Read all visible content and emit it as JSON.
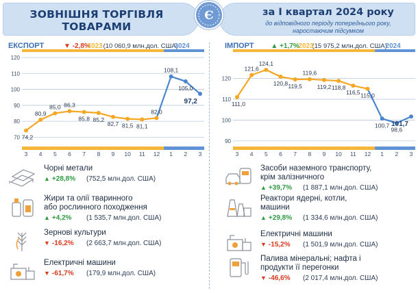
{
  "header": {
    "title_line1": "ЗОВНІШНЯ ТОРГІВЛЯ",
    "title_line2": "ТОВАРАМИ",
    "period": "за І квартал 2024 року",
    "sub_line1": "до відповідного періоду попереднього року,",
    "sub_line2": "наростаючим підсумком",
    "logo_letter": "Є"
  },
  "colors": {
    "line": "#f5a623",
    "line_2024": "#4a86cf",
    "bar_2023": "#f5b63a",
    "bar_2024": "#5f93d6",
    "grid": "#b9c8dc",
    "decrease": "#d9391d",
    "increase": "#2e9a3f"
  },
  "export": {
    "name": "ЕКСПОРТ",
    "change": "-2,8%",
    "total": "(10 060,9 млн.дол. США)",
    "items": [
      {
        "icon": "steel-beams-icon",
        "name": [
          "Чорні метали"
        ],
        "change": "+28,8%",
        "direction": "up",
        "value": "(752,5 млн.дол. США)"
      },
      {
        "icon": "oil-bottle-icon",
        "name": [
          "Жири та олії тваринного",
          "або рослинного походження"
        ],
        "change": "+4,2%",
        "direction": "up",
        "value": "(1 535,7 млн.дол. США)"
      },
      {
        "icon": "wheat-icon",
        "name": [
          "Зернові культури"
        ],
        "change": "-16,2%",
        "direction": "down",
        "value": "(2 663,7 млн.дол. США)"
      },
      {
        "icon": "electric-machine-icon",
        "name": [
          "Електричні машини"
        ],
        "change": "-61,7%",
        "direction": "down",
        "value": "(179,9 млн.дол. США)"
      }
    ]
  },
  "import": {
    "name": "ІМПОРТ",
    "change": "+1,7%",
    "total": "(15 975,2 млн.дол. США)",
    "items": [
      {
        "icon": "vehicles-icon",
        "name": [
          "Засоби наземного транспорту,",
          "крім залізничного"
        ],
        "change": "+39,7%",
        "direction": "up",
        "value": "(1 887,1 млн.дол. США)"
      },
      {
        "icon": "reactor-icon",
        "name": [
          "Реактори ядерні, котли,",
          "машини"
        ],
        "change": "+29,8%",
        "direction": "up",
        "value": "(1 334,6 млн.дол. США)"
      },
      {
        "icon": "electric-machine-icon",
        "name": [
          "Електричні машини"
        ],
        "change": "-15,2%",
        "direction": "down",
        "value": "(1 501,9 млн.дол. США)"
      },
      {
        "icon": "fuel-pump-icon",
        "name": [
          "Палива мінеральні; нафта і",
          "продукти її перегонки"
        ],
        "change": "-46,6%",
        "direction": "down",
        "value": "(2 017,4 млн.дол. США)"
      }
    ]
  },
  "chart_data": [
    {
      "type": "line",
      "title": "ЕКСПОРТ",
      "x": [
        "3",
        "4",
        "5",
        "6",
        "7",
        "8",
        "9",
        "10",
        "11",
        "12",
        "1",
        "2",
        "3"
      ],
      "years": [
        {
          "label": "2023",
          "months": 10
        },
        {
          "label": "2024",
          "months": 3
        }
      ],
      "series": [
        {
          "values": [
            74.2,
            80.9,
            85.0,
            86.3,
            85.8,
            85.2,
            82.7,
            81.5,
            81.1,
            82.0,
            108.1,
            105.0,
            97.2
          ]
        }
      ],
      "point_labels": [
        "74,2",
        "80,9",
        "85,0",
        "86,3",
        "85,8",
        "85,2",
        "82,7",
        "81,5",
        "81,1",
        "82,0",
        "108,1",
        "105,0",
        "97,2"
      ],
      "yticks": [
        "70",
        "80",
        "90",
        "100",
        "110",
        "120"
      ],
      "ylim": [
        65,
        120
      ],
      "grid": true
    },
    {
      "type": "line",
      "title": "ІМПОРТ",
      "x": [
        "3",
        "4",
        "5",
        "6",
        "7",
        "8",
        "9",
        "10",
        "11",
        "12",
        "1",
        "2",
        "3"
      ],
      "years": [
        {
          "label": "2023",
          "months": 10
        },
        {
          "label": "2024",
          "months": 3
        }
      ],
      "series": [
        {
          "values": [
            111.0,
            121.6,
            124.1,
            120.8,
            119.5,
            119.6,
            119.2,
            118.8,
            116.5,
            115.0,
            100.7,
            98.6,
            101.7
          ]
        }
      ],
      "point_labels": [
        "111,0",
        "121,6",
        "124,1",
        "120,8",
        "119,5",
        "119,6",
        "119,2",
        "118,8",
        "116,5",
        "115,0",
        "100,7",
        "98,6",
        "101,7"
      ],
      "yticks": [
        "90",
        "100",
        "110",
        "120"
      ],
      "ylim": [
        88,
        130
      ],
      "grid": true
    }
  ]
}
